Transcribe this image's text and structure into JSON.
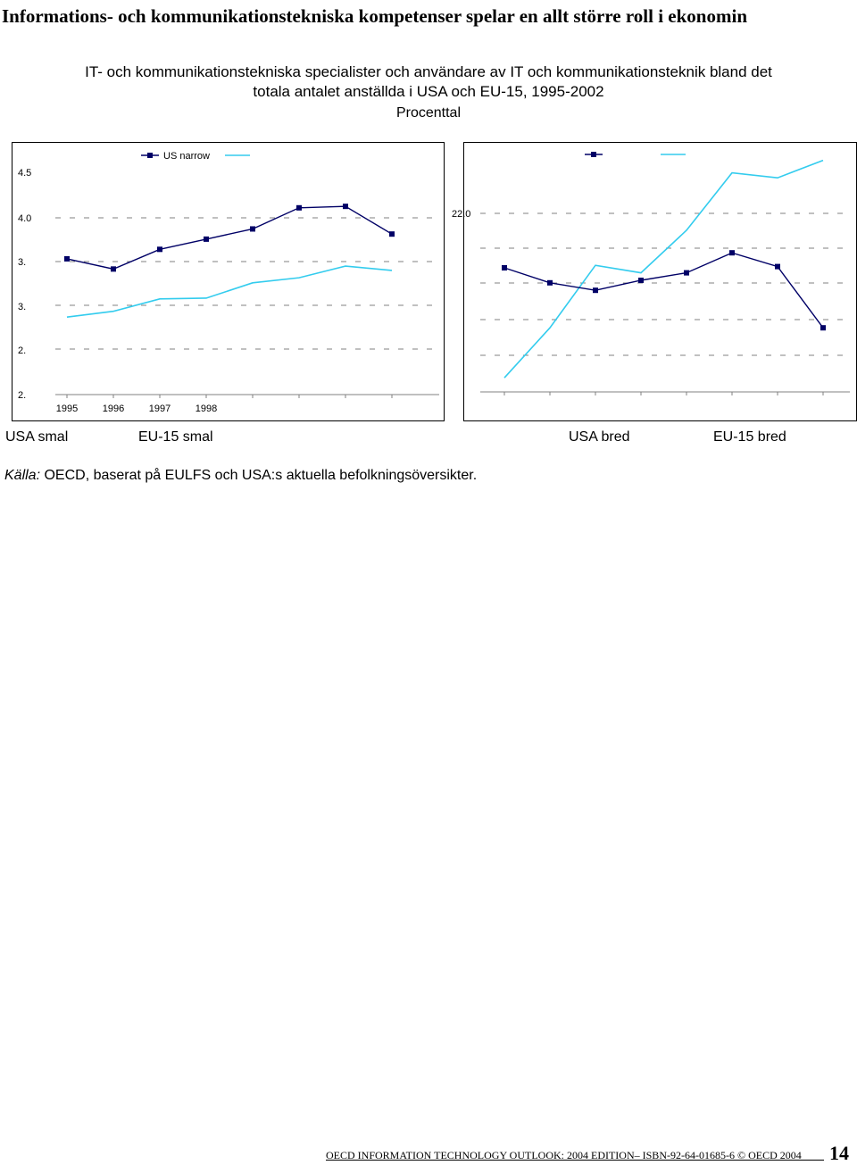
{
  "page": {
    "heading": "Informations- och kommunikationstekniska kompetenser spelar en allt större roll i ekonomin",
    "subtitle_line1": "IT- och kommunikationstekniska specialister och användare av IT och kommunikationsteknik bland det",
    "subtitle_line2": "totala antalet anställda i USA och EU-15, 1995-2002",
    "unit": "Procenttal",
    "source_label": "Källa:",
    "source_text": " OECD, baserat på EULFS och USA:s aktuella befolkningsöversikter.",
    "footer_text": "OECD INFORMATION TECHNOLOGY OUTLOOK: 2004 EDITION– ISBN-92-64-01685-6 © OECD 2004",
    "page_number": "14"
  },
  "captions": {
    "left_a": "USA smal",
    "left_b": "EU-15 smal",
    "right_a": "USA bred",
    "right_b": "EU-15 bred"
  },
  "colors": {
    "usa_series": "#000066",
    "eu_series": "#33ccee",
    "gridline": "#808080"
  },
  "chart_data": [
    {
      "type": "line",
      "legend_text": "US narrow",
      "y_tick_labels": [
        "4.5",
        "4.0",
        "3.",
        "3.",
        "2.",
        "2."
      ],
      "x_tick_labels": [
        "1995",
        "1996",
        "1997",
        "1998"
      ],
      "x": [
        1995,
        1996,
        1997,
        1998,
        1999,
        2000,
        2001,
        2002
      ],
      "ylim": [
        2.0,
        4.5
      ],
      "grid": true,
      "series": [
        {
          "values": [
            3.3,
            3.16,
            3.43,
            3.57,
            3.71,
            4.0,
            4.02,
            3.64
          ],
          "marker": "square",
          "color_key": "usa_series"
        },
        {
          "values": [
            2.5,
            2.58,
            2.75,
            2.76,
            2.97,
            3.04,
            3.2,
            3.14
          ],
          "marker": "none",
          "color_key": "eu_series"
        }
      ]
    },
    {
      "type": "line",
      "legend_text": "",
      "y_tick_labels": [
        "22.0"
      ],
      "x": [
        1995,
        1996,
        1997,
        1998,
        1999,
        2000,
        2001,
        2002
      ],
      "ylim": [
        14.0,
        24.0
      ],
      "grid": true,
      "series": [
        {
          "values": [
            19.5,
            18.9,
            18.6,
            19.0,
            19.3,
            20.1,
            19.55,
            17.1
          ],
          "marker": "square",
          "color_key": "usa_series"
        },
        {
          "values": [
            15.1,
            17.1,
            19.6,
            19.3,
            21.0,
            23.3,
            23.1,
            23.8
          ],
          "marker": "none",
          "color_key": "eu_series"
        }
      ]
    }
  ]
}
